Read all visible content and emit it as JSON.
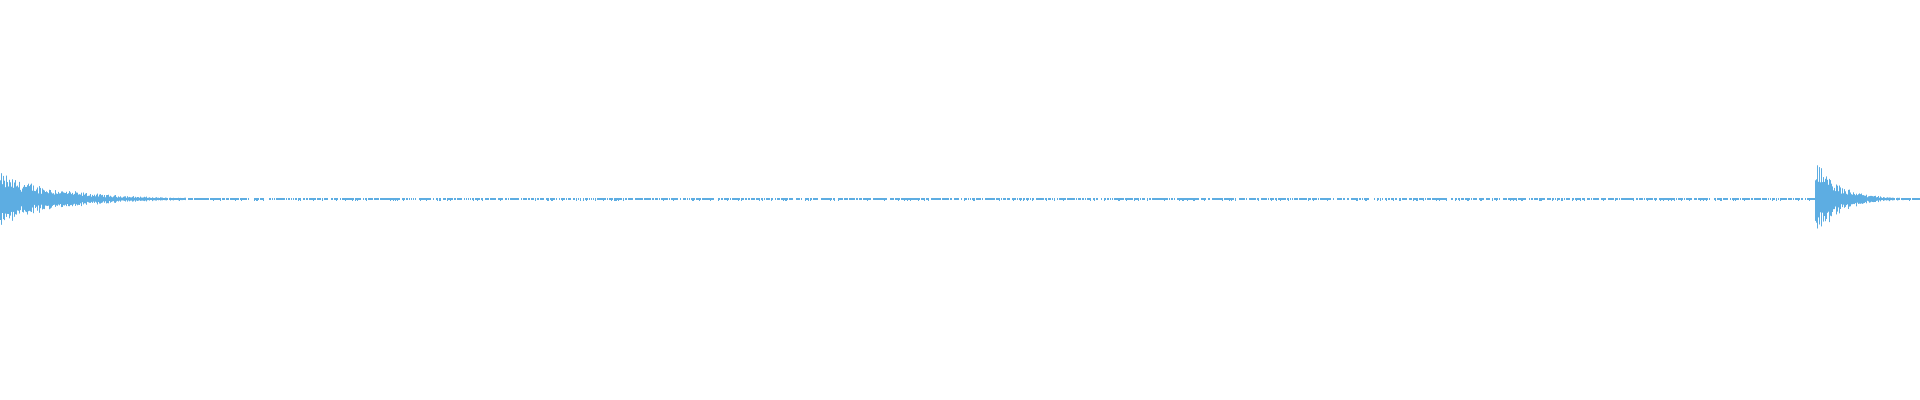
{
  "chart_data": {
    "type": "waveform",
    "color": "#5dade2",
    "background": "#ffffff",
    "axes_visible": false,
    "grid": false,
    "amplitude_range": [
      -1,
      1
    ],
    "events": [
      {
        "label_shown": false,
        "onset_fraction": 0.0,
        "peak_amplitude": 0.62,
        "decay_fraction": 0.05
      },
      {
        "label_shown": false,
        "onset_fraction": 0.945,
        "peak_amplitude": 1.0,
        "decay_fraction": 0.02
      }
    ],
    "noise_floor_amplitude": 0.02
  }
}
